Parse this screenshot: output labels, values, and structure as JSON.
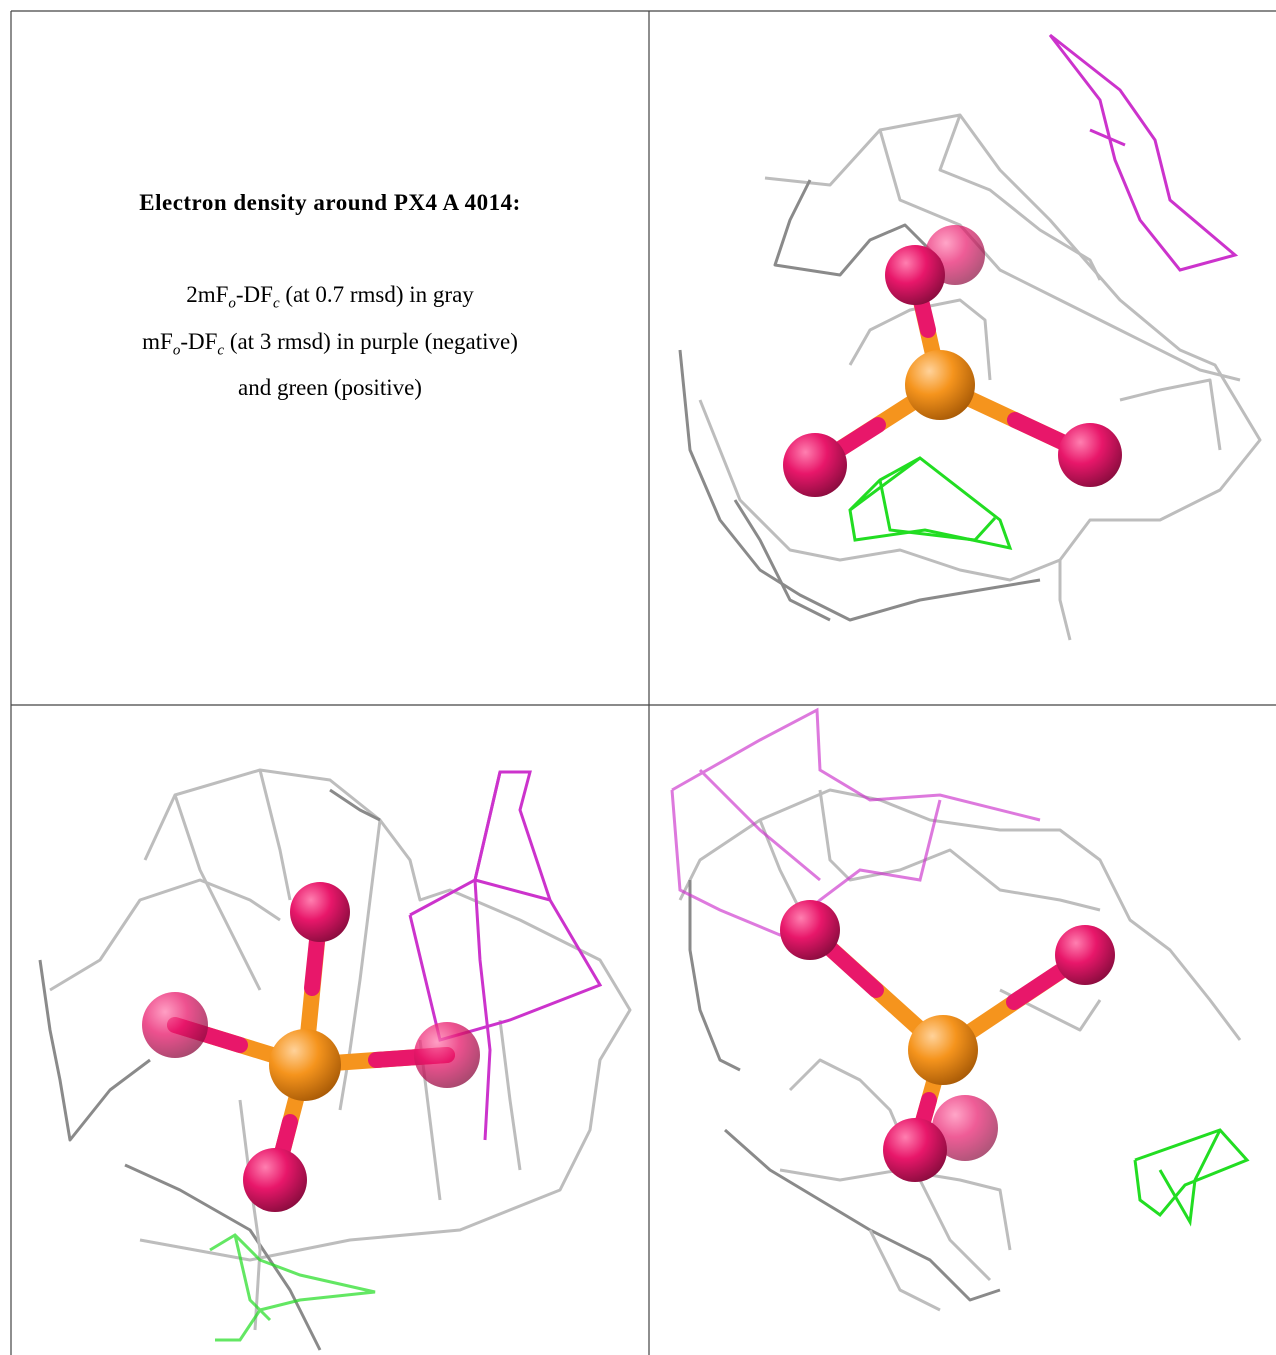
{
  "caption": {
    "title": "Electron density around PX4 A 4014:",
    "lines": [
      [
        {
          "text": "2mF"
        },
        {
          "sub": "o"
        },
        {
          "text": "-DF"
        },
        {
          "sub": "c"
        },
        {
          "text": " (at 0.7 rmsd) in gray"
        }
      ],
      [
        {
          "text": "mF"
        },
        {
          "sub": "o"
        },
        {
          "text": "-DF"
        },
        {
          "sub": "c"
        },
        {
          "text": " (at 3 rmsd) in purple (negative)"
        }
      ],
      [
        {
          "text": "and green (positive)"
        }
      ]
    ]
  }
}
